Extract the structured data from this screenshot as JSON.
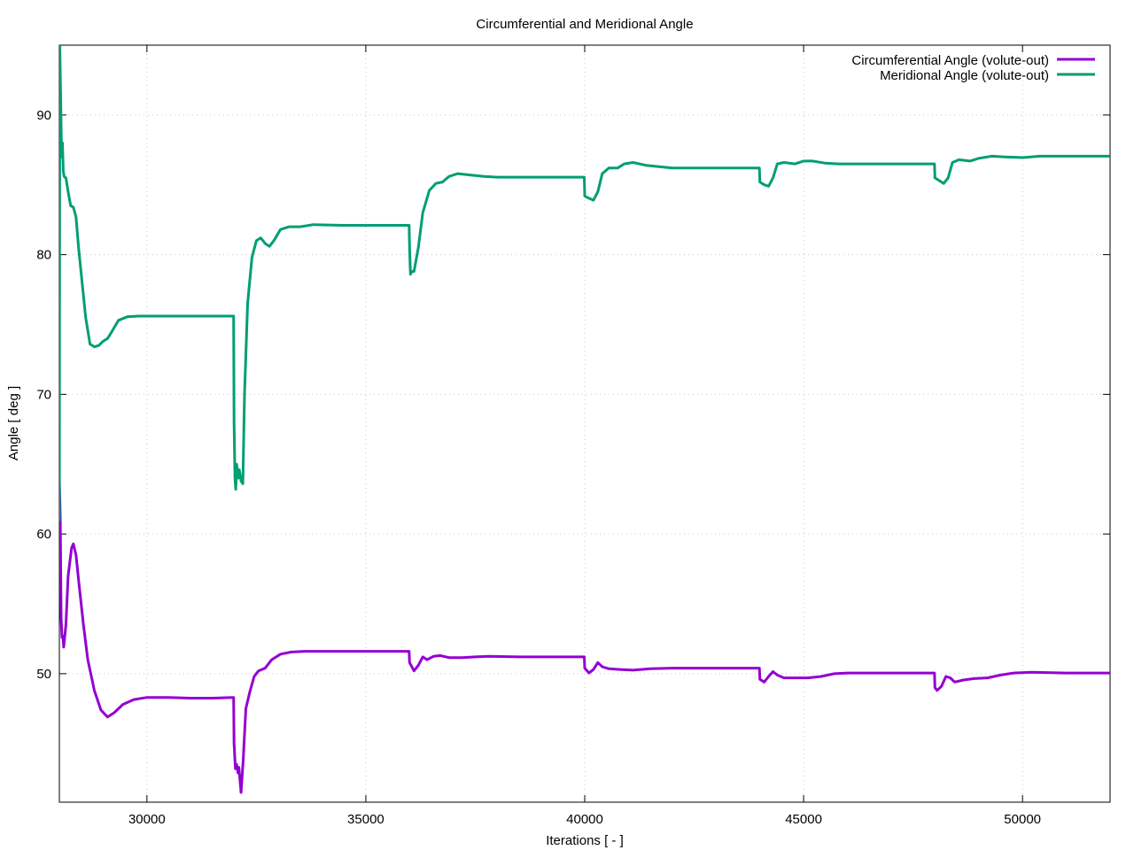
{
  "chart_data": {
    "type": "line",
    "title": "Circumferential and Meridional Angle",
    "xlabel": "Iterations [ - ]",
    "ylabel": "Angle [ deg ]",
    "xlim": [
      28000,
      52000
    ],
    "ylim": [
      40.8,
      95
    ],
    "x_ticks": [
      30000,
      35000,
      40000,
      45000,
      50000
    ],
    "y_ticks": [
      50,
      60,
      70,
      80,
      90
    ],
    "grid": true,
    "legend_position": "top-right",
    "series": [
      {
        "name": "Circumferential Angle (volute-out)",
        "color": "#9400d3",
        "points": [
          [
            28000,
            64
          ],
          [
            28020,
            61.2
          ],
          [
            28040,
            54
          ],
          [
            28060,
            52.6
          ],
          [
            28080,
            52.7
          ],
          [
            28100,
            51.9
          ],
          [
            28150,
            53.5
          ],
          [
            28200,
            57
          ],
          [
            28280,
            59
          ],
          [
            28320,
            59.3
          ],
          [
            28380,
            58.5
          ],
          [
            28450,
            56.4
          ],
          [
            28550,
            53.5
          ],
          [
            28650,
            51
          ],
          [
            28800,
            48.8
          ],
          [
            28950,
            47.4
          ],
          [
            29100,
            46.9
          ],
          [
            29250,
            47.2
          ],
          [
            29450,
            47.8
          ],
          [
            29700,
            48.15
          ],
          [
            30000,
            48.3
          ],
          [
            30500,
            48.3
          ],
          [
            31000,
            48.25
          ],
          [
            31500,
            48.25
          ],
          [
            31980,
            48.3
          ],
          [
            31990,
            45
          ],
          [
            32020,
            43.2
          ],
          [
            32050,
            43.5
          ],
          [
            32080,
            42.9
          ],
          [
            32100,
            43.3
          ],
          [
            32150,
            41.5
          ],
          [
            32200,
            43.8
          ],
          [
            32260,
            47.5
          ],
          [
            32350,
            48.7
          ],
          [
            32450,
            49.8
          ],
          [
            32550,
            50.2
          ],
          [
            32700,
            50.4
          ],
          [
            32850,
            51
          ],
          [
            33050,
            51.4
          ],
          [
            33300,
            51.55
          ],
          [
            33600,
            51.6
          ],
          [
            34500,
            51.6
          ],
          [
            35500,
            51.6
          ],
          [
            35990,
            51.6
          ],
          [
            36000,
            50.8
          ],
          [
            36100,
            50.2
          ],
          [
            36200,
            50.6
          ],
          [
            36300,
            51.2
          ],
          [
            36400,
            51
          ],
          [
            36550,
            51.25
          ],
          [
            36700,
            51.3
          ],
          [
            36900,
            51.15
          ],
          [
            37200,
            51.15
          ],
          [
            37500,
            51.2
          ],
          [
            37800,
            51.25
          ],
          [
            38500,
            51.2
          ],
          [
            39500,
            51.2
          ],
          [
            39990,
            51.2
          ],
          [
            40000,
            50.4
          ],
          [
            40100,
            50.05
          ],
          [
            40200,
            50.3
          ],
          [
            40300,
            50.8
          ],
          [
            40400,
            50.5
          ],
          [
            40550,
            50.35
          ],
          [
            40800,
            50.3
          ],
          [
            41100,
            50.25
          ],
          [
            41500,
            50.35
          ],
          [
            42000,
            50.4
          ],
          [
            43000,
            50.4
          ],
          [
            43990,
            50.4
          ],
          [
            44000,
            49.6
          ],
          [
            44100,
            49.4
          ],
          [
            44200,
            49.8
          ],
          [
            44300,
            50.15
          ],
          [
            44400,
            49.9
          ],
          [
            44550,
            49.7
          ],
          [
            44800,
            49.7
          ],
          [
            45100,
            49.7
          ],
          [
            45400,
            49.8
          ],
          [
            45700,
            50
          ],
          [
            46000,
            50.05
          ],
          [
            47000,
            50.05
          ],
          [
            47990,
            50.05
          ],
          [
            48000,
            49
          ],
          [
            48050,
            48.8
          ],
          [
            48150,
            49.1
          ],
          [
            48250,
            49.8
          ],
          [
            48350,
            49.7
          ],
          [
            48450,
            49.4
          ],
          [
            48650,
            49.55
          ],
          [
            48900,
            49.65
          ],
          [
            49200,
            49.7
          ],
          [
            49500,
            49.9
          ],
          [
            49800,
            50.05
          ],
          [
            50200,
            50.1
          ],
          [
            51000,
            50.05
          ],
          [
            52000,
            50.05
          ]
        ]
      },
      {
        "name": "Meridional Angle (volute-out)",
        "color": "#009e73",
        "points": [
          [
            28000,
            61
          ],
          [
            28010,
            95
          ],
          [
            28030,
            91.2
          ],
          [
            28050,
            87
          ],
          [
            28070,
            88
          ],
          [
            28090,
            86
          ],
          [
            28110,
            85.6
          ],
          [
            28150,
            85.5
          ],
          [
            28200,
            84.5
          ],
          [
            28260,
            83.5
          ],
          [
            28320,
            83.4
          ],
          [
            28380,
            82.7
          ],
          [
            28440,
            80.5
          ],
          [
            28520,
            78
          ],
          [
            28600,
            75.5
          ],
          [
            28700,
            73.6
          ],
          [
            28800,
            73.4
          ],
          [
            28900,
            73.5
          ],
          [
            29000,
            73.8
          ],
          [
            29100,
            74
          ],
          [
            29200,
            74.5
          ],
          [
            29350,
            75.3
          ],
          [
            29550,
            75.55
          ],
          [
            29800,
            75.6
          ],
          [
            30500,
            75.6
          ],
          [
            31500,
            75.6
          ],
          [
            31980,
            75.6
          ],
          [
            31990,
            68
          ],
          [
            32010,
            64
          ],
          [
            32030,
            63.2
          ],
          [
            32050,
            65
          ],
          [
            32070,
            64.5
          ],
          [
            32090,
            64
          ],
          [
            32110,
            64.6
          ],
          [
            32150,
            63.8
          ],
          [
            32190,
            63.6
          ],
          [
            32230,
            70
          ],
          [
            32300,
            76.5
          ],
          [
            32400,
            79.8
          ],
          [
            32500,
            81
          ],
          [
            32600,
            81.2
          ],
          [
            32700,
            80.8
          ],
          [
            32800,
            80.6
          ],
          [
            32900,
            81
          ],
          [
            33050,
            81.8
          ],
          [
            33250,
            82
          ],
          [
            33500,
            82
          ],
          [
            33800,
            82.15
          ],
          [
            34500,
            82.1
          ],
          [
            35500,
            82.1
          ],
          [
            35990,
            82.1
          ],
          [
            36000,
            80.5
          ],
          [
            36020,
            78.6
          ],
          [
            36050,
            78.8
          ],
          [
            36100,
            78.8
          ],
          [
            36200,
            80.5
          ],
          [
            36300,
            83
          ],
          [
            36450,
            84.6
          ],
          [
            36600,
            85.1
          ],
          [
            36750,
            85.2
          ],
          [
            36900,
            85.6
          ],
          [
            37100,
            85.8
          ],
          [
            37400,
            85.7
          ],
          [
            37700,
            85.6
          ],
          [
            38000,
            85.55
          ],
          [
            39000,
            85.55
          ],
          [
            39990,
            85.55
          ],
          [
            40000,
            84.2
          ],
          [
            40050,
            84.1
          ],
          [
            40200,
            83.9
          ],
          [
            40300,
            84.5
          ],
          [
            40400,
            85.8
          ],
          [
            40550,
            86.2
          ],
          [
            40750,
            86.2
          ],
          [
            40900,
            86.5
          ],
          [
            41100,
            86.6
          ],
          [
            41400,
            86.4
          ],
          [
            41700,
            86.3
          ],
          [
            42000,
            86.2
          ],
          [
            43000,
            86.2
          ],
          [
            43990,
            86.2
          ],
          [
            44000,
            85.2
          ],
          [
            44100,
            85
          ],
          [
            44200,
            84.9
          ],
          [
            44300,
            85.5
          ],
          [
            44400,
            86.5
          ],
          [
            44550,
            86.6
          ],
          [
            44800,
            86.5
          ],
          [
            45000,
            86.7
          ],
          [
            45200,
            86.7
          ],
          [
            45500,
            86.55
          ],
          [
            45800,
            86.5
          ],
          [
            46500,
            86.5
          ],
          [
            47990,
            86.5
          ],
          [
            48000,
            85.5
          ],
          [
            48100,
            85.3
          ],
          [
            48200,
            85.1
          ],
          [
            48300,
            85.5
          ],
          [
            48400,
            86.6
          ],
          [
            48550,
            86.8
          ],
          [
            48800,
            86.7
          ],
          [
            49000,
            86.9
          ],
          [
            49300,
            87.05
          ],
          [
            49600,
            87
          ],
          [
            50000,
            86.95
          ],
          [
            50400,
            87.05
          ],
          [
            51000,
            87.05
          ],
          [
            52000,
            87.05
          ]
        ]
      }
    ]
  }
}
